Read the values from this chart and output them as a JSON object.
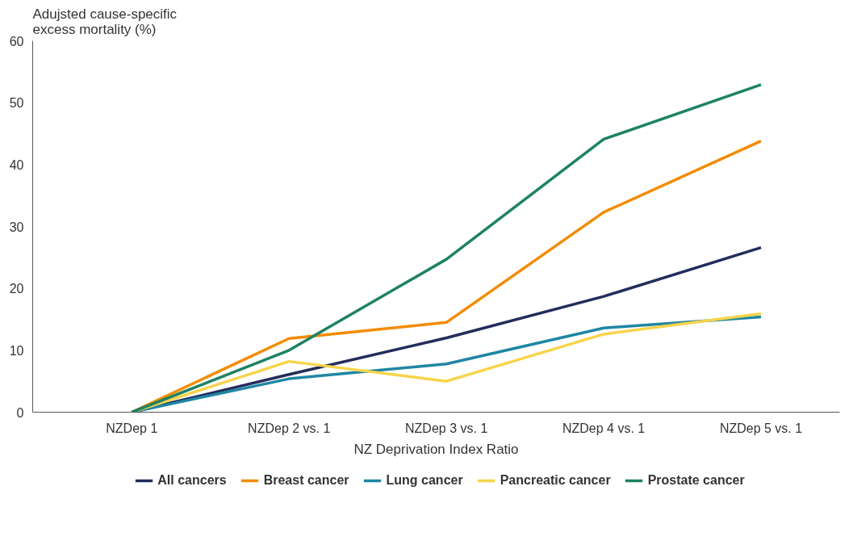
{
  "chart_data": {
    "type": "line",
    "ylabel": "Adujsted cause-specific excess mortality (%)",
    "xlabel": "NZ Deprivation Index Ratio",
    "categories": [
      "NZDep 1",
      "NZDep 2 vs. 1",
      "NZDep 3 vs. 1",
      "NZDep 4 vs. 1",
      "NZDep 5 vs. 1"
    ],
    "ylim": [
      0,
      60
    ],
    "yticks": [
      0,
      10,
      20,
      30,
      40,
      50,
      60
    ],
    "grid": false,
    "legend": "bottom",
    "marker": "none",
    "line_style": "solid",
    "series": [
      {
        "name": "All cancers",
        "color": "#232d5c",
        "values": [
          0,
          6.1,
          12.0,
          18.7,
          26.6
        ]
      },
      {
        "name": "Breast cancer",
        "color": "#f28c00",
        "values": [
          0,
          11.9,
          14.5,
          32.3,
          43.8
        ]
      },
      {
        "name": "Lung cancer",
        "color": "#1f86a3",
        "values": [
          0,
          5.4,
          7.8,
          13.6,
          15.4
        ]
      },
      {
        "name": "Pancreatic cancer",
        "color": "#f7d44a",
        "values": [
          0,
          8.2,
          5.0,
          12.6,
          15.9
        ]
      },
      {
        "name": "Prostate cancer",
        "color": "#1e8265",
        "values": [
          0,
          10.0,
          24.7,
          44.1,
          52.9
        ]
      }
    ]
  }
}
